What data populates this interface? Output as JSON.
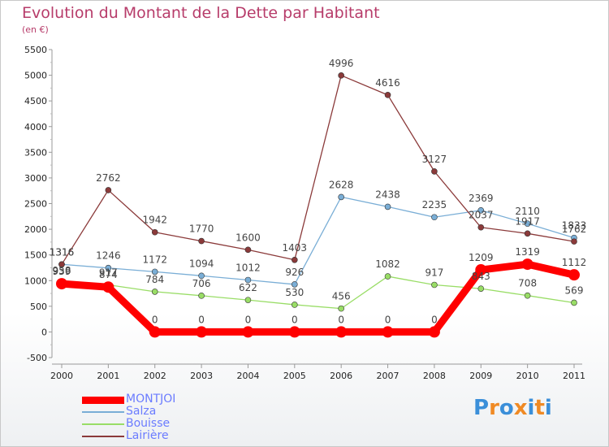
{
  "chart_data": {
    "type": "line",
    "title": "Evolution du Montant de la Dette par Habitant",
    "subtitle": "(en €)",
    "x": [
      "2000",
      "2001",
      "2002",
      "2003",
      "2004",
      "2005",
      "2006",
      "2007",
      "2008",
      "2009",
      "2010",
      "2011"
    ],
    "ylim": [
      -500,
      5500
    ],
    "yticks": [
      -500,
      0,
      500,
      1000,
      1500,
      2000,
      2500,
      3000,
      3500,
      4000,
      4500,
      5000,
      5500
    ],
    "grid": false,
    "legend_position": "bottom-left",
    "series": [
      {
        "name": "MONTJOI",
        "values": [
          939,
          874,
          0,
          0,
          0,
          0,
          0,
          0,
          0,
          1209,
          1319,
          1112
        ],
        "color": "#ff0000",
        "emphasis": true
      },
      {
        "name": "Salza",
        "values": [
          1316,
          1246,
          1172,
          1094,
          1012,
          926,
          2628,
          2438,
          2235,
          2369,
          2110,
          1833
        ],
        "color": "#7aaed6"
      },
      {
        "name": "Bouisse",
        "values": [
          958,
          917,
          784,
          706,
          622,
          530,
          456,
          1082,
          917,
          843,
          708,
          569
        ],
        "color": "#99dd66"
      },
      {
        "name": "Lairière",
        "values": [
          1316,
          2762,
          1942,
          1770,
          1600,
          1403,
          4996,
          4616,
          3127,
          2037,
          1917,
          1762
        ],
        "color": "#8b3a3a"
      }
    ]
  },
  "legend": {
    "items": [
      {
        "name": "MONTJOI",
        "color": "#ff0000",
        "text_color": "#6b7cff"
      },
      {
        "name": "Salza",
        "color": "#7aaed6",
        "text_color": "#6b7cff"
      },
      {
        "name": "Bouisse",
        "color": "#99dd66",
        "text_color": "#6b7cff"
      },
      {
        "name": "Lairière",
        "color": "#8b3a3a",
        "text_color": "#6b7cff"
      }
    ]
  },
  "brand": {
    "text": "Proxiti",
    "letters": [
      {
        "char": "P",
        "color": "#3b8fd9"
      },
      {
        "char": "r",
        "color": "#f08a24"
      },
      {
        "char": "o",
        "color": "#3b8fd9"
      },
      {
        "char": "x",
        "color": "#f08a24"
      },
      {
        "char": "i",
        "color": "#3b8fd9"
      },
      {
        "char": "t",
        "color": "#f08a24"
      },
      {
        "char": "i",
        "color": "#3b8fd9"
      }
    ]
  }
}
